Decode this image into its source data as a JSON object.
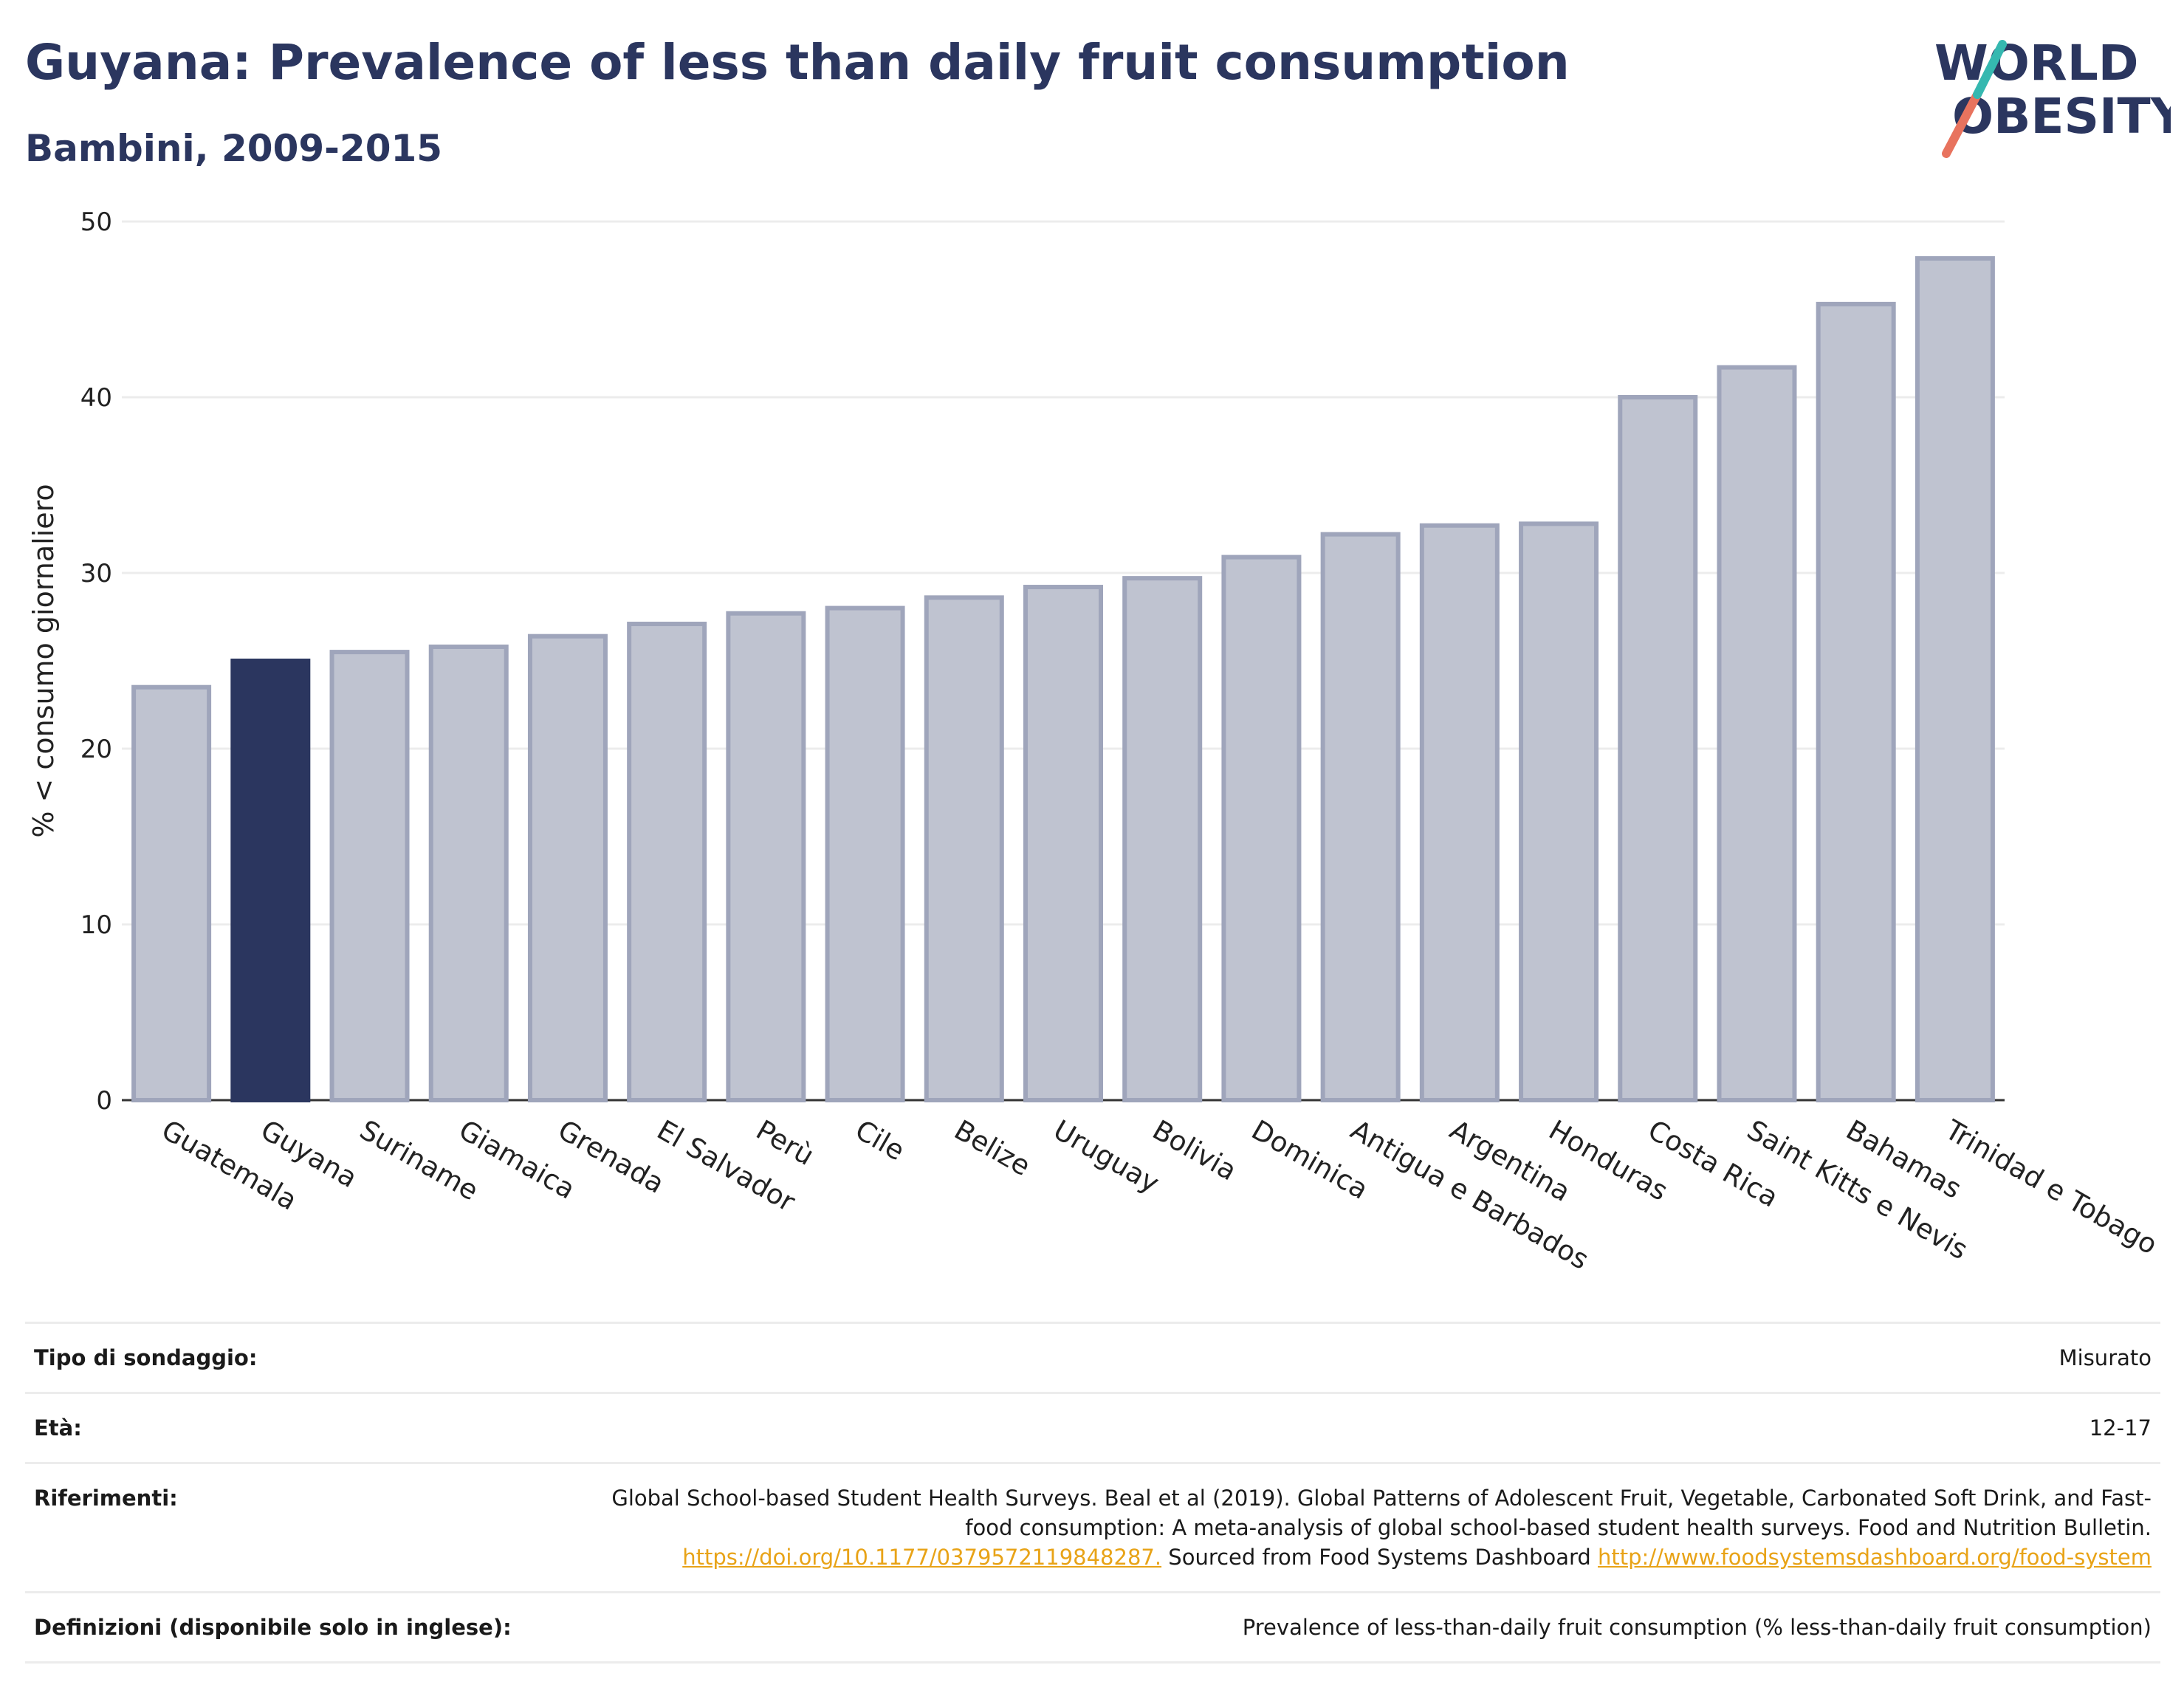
{
  "header": {
    "title": "Guyana: Prevalence of less than daily fruit consumption",
    "subtitle": "Bambini, 2009-2015"
  },
  "logo": {
    "line1": "WORLD",
    "line2": "OBESITY"
  },
  "colors": {
    "bar": "#bfc3d0",
    "bar_border": "#9fa5bb",
    "highlight": "#2b365f",
    "grid": "#ececec",
    "accent_teal": "#35b8b0",
    "accent_coral": "#e8735e"
  },
  "chart_data": {
    "type": "bar",
    "ylabel": "% < consumo giornaliero",
    "ylim": [
      0,
      50
    ],
    "yticks": [
      0,
      10,
      20,
      30,
      40,
      50
    ],
    "grid": true,
    "highlight": "Guyana",
    "categories": [
      "Guatemala",
      "Guyana",
      "Suriname",
      "Giamaica",
      "Grenada",
      "El Salvador",
      "Perù",
      "Cile",
      "Belize",
      "Uruguay",
      "Bolivia",
      "Dominica",
      "Antigua e Barbados",
      "Argentina",
      "Honduras",
      "Costa Rica",
      "Saint Kitts e Nevis",
      "Bahamas",
      "Trinidad e Tobago"
    ],
    "values": [
      23.5,
      25.0,
      25.5,
      25.8,
      26.4,
      27.1,
      27.7,
      28.0,
      28.6,
      29.2,
      29.7,
      30.9,
      32.2,
      32.7,
      32.8,
      40.0,
      41.7,
      45.3,
      47.9
    ]
  },
  "info": {
    "survey_label": "Tipo di sondaggio:",
    "survey_value": "Misurato",
    "age_label": "Età:",
    "age_value": "12-17",
    "ref_label": "Riferimenti:",
    "ref_text1": "Global School-based Student Health Surveys. Beal et al (2019). Global Patterns of Adolescent Fruit, Vegetable, Carbonated Soft Drink, and Fast-food consumption: A meta-analysis of global school-based student health surveys. Food and Nutrition Bulletin.",
    "ref_link1": "https://doi.org/10.1177/0379572119848287.",
    "ref_text2": "Sourced from Food Systems Dashboard",
    "ref_link2": "http://www.foodsystemsdashboard.org/food-system",
    "def_label": "Definizioni (disponibile solo in inglese):",
    "def_value": "Prevalence of less-than-daily fruit consumption (% less-than-daily fruit consumption)"
  }
}
